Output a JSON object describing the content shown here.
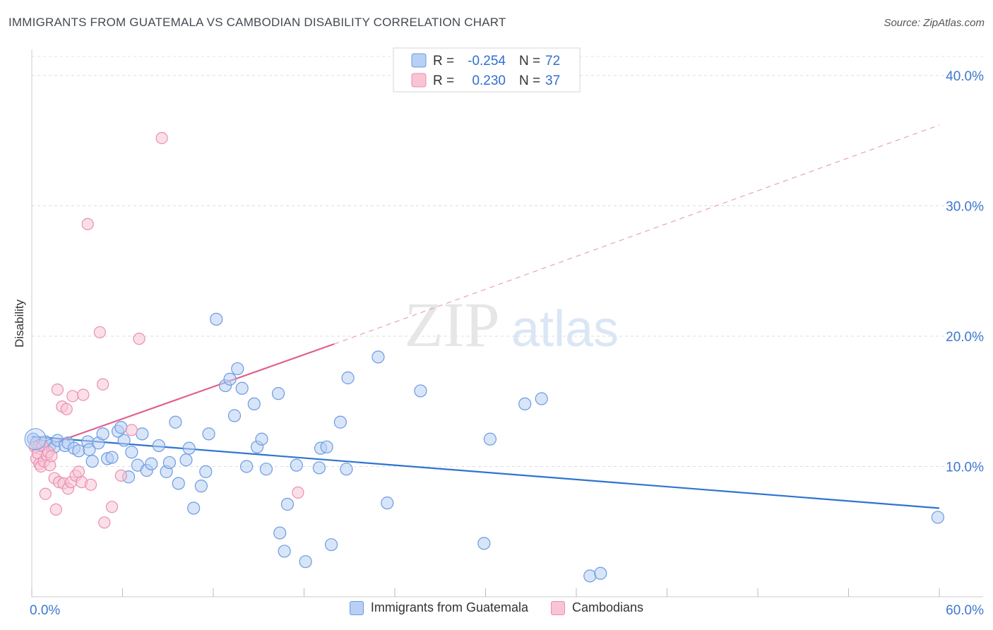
{
  "header": {
    "title": "IMMIGRANTS FROM GUATEMALA VS CAMBODIAN DISABILITY CORRELATION CHART",
    "source": "Source: ZipAtlas.com"
  },
  "watermark": {
    "zip": "ZIP",
    "atlas": "atlas"
  },
  "chart_data": {
    "type": "scatter",
    "ylabel": "Disability",
    "xlim": [
      0,
      60
    ],
    "ylim": [
      0,
      42
    ],
    "x_tick_labels": [
      "0.0%",
      "60.0%"
    ],
    "y_ticks": [
      10,
      20,
      30,
      40
    ],
    "y_tick_labels": [
      "10.0%",
      "20.0%",
      "30.0%",
      "40.0%"
    ],
    "grid": true,
    "legend_placement": "top-center",
    "stats": [
      {
        "r_label": "R =",
        "r_value": "-0.254",
        "n_label": "N =",
        "n_value": "72"
      },
      {
        "r_label": "R =",
        "r_value": "0.230",
        "n_label": "N =",
        "n_value": "37"
      }
    ],
    "series": [
      {
        "name": "Immigrants from Guatemala",
        "color": "#6b9be0",
        "fill": "#b8d0f4",
        "trend_color": "#2f74d0",
        "trend": {
          "x0": 0,
          "y0": 12.3,
          "x1": 60,
          "y1": 6.8
        },
        "points": [
          [
            0.1,
            12.1
          ],
          [
            0.3,
            11.8
          ],
          [
            0.5,
            11.6
          ],
          [
            0.9,
            11.9
          ],
          [
            1.2,
            11.6
          ],
          [
            1.5,
            11.5
          ],
          [
            1.7,
            12.0
          ],
          [
            2.2,
            11.6
          ],
          [
            2.4,
            11.8
          ],
          [
            2.8,
            11.4
          ],
          [
            3.1,
            11.2
          ],
          [
            3.7,
            11.9
          ],
          [
            3.8,
            11.3
          ],
          [
            4.0,
            10.4
          ],
          [
            4.4,
            11.8
          ],
          [
            4.7,
            12.5
          ],
          [
            5.0,
            10.6
          ],
          [
            5.3,
            10.7
          ],
          [
            5.7,
            12.7
          ],
          [
            5.9,
            13.0
          ],
          [
            6.1,
            12.0
          ],
          [
            6.4,
            9.2
          ],
          [
            6.6,
            11.1
          ],
          [
            7.0,
            10.1
          ],
          [
            7.3,
            12.5
          ],
          [
            7.6,
            9.7
          ],
          [
            7.9,
            10.2
          ],
          [
            8.4,
            11.6
          ],
          [
            8.9,
            9.6
          ],
          [
            9.1,
            10.3
          ],
          [
            9.5,
            13.4
          ],
          [
            9.7,
            8.7
          ],
          [
            10.2,
            10.5
          ],
          [
            10.4,
            11.4
          ],
          [
            10.7,
            6.8
          ],
          [
            11.2,
            8.5
          ],
          [
            11.5,
            9.6
          ],
          [
            11.7,
            12.5
          ],
          [
            12.2,
            21.3
          ],
          [
            12.8,
            16.2
          ],
          [
            13.1,
            16.7
          ],
          [
            13.4,
            13.9
          ],
          [
            13.6,
            17.5
          ],
          [
            13.9,
            16.0
          ],
          [
            14.2,
            10.0
          ],
          [
            14.7,
            14.8
          ],
          [
            14.9,
            11.5
          ],
          [
            15.2,
            12.1
          ],
          [
            15.5,
            9.8
          ],
          [
            16.3,
            15.6
          ],
          [
            16.4,
            4.9
          ],
          [
            16.7,
            3.5
          ],
          [
            16.9,
            7.1
          ],
          [
            17.5,
            10.1
          ],
          [
            18.1,
            2.7
          ],
          [
            19.0,
            9.9
          ],
          [
            19.1,
            11.4
          ],
          [
            19.5,
            11.5
          ],
          [
            19.8,
            4.0
          ],
          [
            20.4,
            13.4
          ],
          [
            20.8,
            9.8
          ],
          [
            20.9,
            16.8
          ],
          [
            22.9,
            18.4
          ],
          [
            23.5,
            7.2
          ],
          [
            25.7,
            15.8
          ],
          [
            29.9,
            4.1
          ],
          [
            30.3,
            12.1
          ],
          [
            32.6,
            14.8
          ],
          [
            33.7,
            15.2
          ],
          [
            36.9,
            1.6
          ],
          [
            37.6,
            1.8
          ],
          [
            59.9,
            6.1
          ]
        ]
      },
      {
        "name": "Cambodians",
        "color": "#ea8fb0",
        "fill": "#f8c4d6",
        "trend_color": "#e0608c",
        "trend": {
          "x0": 0,
          "y0": 11.2,
          "x1": 20,
          "y1": 19.4,
          "x2": 60,
          "y2": 36.2
        },
        "points": [
          [
            0.2,
            11.5
          ],
          [
            0.3,
            10.6
          ],
          [
            0.4,
            11.0
          ],
          [
            0.5,
            10.2
          ],
          [
            0.6,
            10.0
          ],
          [
            0.7,
            11.6
          ],
          [
            0.8,
            10.4
          ],
          [
            0.9,
            7.9
          ],
          [
            1.0,
            10.9
          ],
          [
            1.1,
            11.1
          ],
          [
            1.2,
            10.1
          ],
          [
            1.3,
            10.8
          ],
          [
            1.5,
            9.1
          ],
          [
            1.6,
            6.7
          ],
          [
            1.7,
            15.9
          ],
          [
            1.8,
            8.8
          ],
          [
            2.0,
            14.6
          ],
          [
            2.1,
            8.7
          ],
          [
            2.3,
            14.4
          ],
          [
            2.4,
            8.3
          ],
          [
            2.6,
            8.8
          ],
          [
            2.7,
            15.4
          ],
          [
            2.9,
            9.3
          ],
          [
            3.1,
            9.6
          ],
          [
            3.3,
            8.8
          ],
          [
            3.4,
            15.5
          ],
          [
            3.7,
            28.6
          ],
          [
            3.9,
            8.6
          ],
          [
            4.5,
            20.3
          ],
          [
            4.7,
            16.3
          ],
          [
            4.8,
            5.7
          ],
          [
            5.3,
            6.9
          ],
          [
            5.9,
            9.3
          ],
          [
            6.6,
            12.8
          ],
          [
            7.1,
            19.8
          ],
          [
            8.6,
            35.2
          ],
          [
            17.6,
            8.0
          ]
        ]
      }
    ]
  }
}
